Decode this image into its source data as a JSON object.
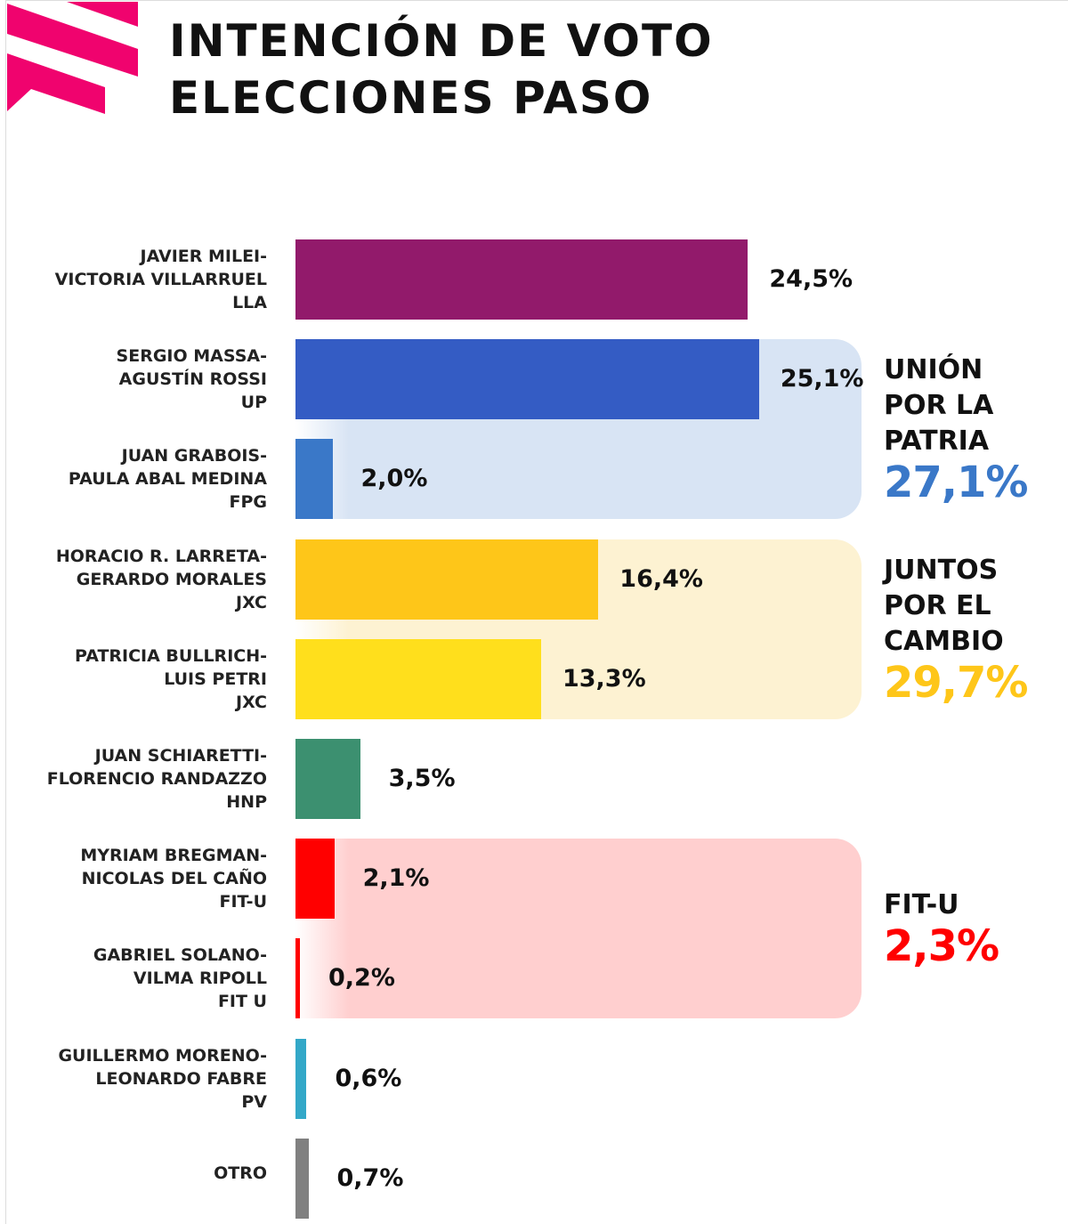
{
  "header": {
    "title_line1": "INTENCIÓN DE VOTO",
    "title_line2": "ELECCIONES PASO",
    "logo_color": "#f0036e"
  },
  "chart_data": {
    "type": "bar",
    "orientation": "horizontal",
    "title": "INTENCIÓN DE VOTO ELECCIONES PASO",
    "unit": "%",
    "categories": [
      [
        "JAVIER MILEI-",
        "VICTORIA VILLARRUEL",
        "LLA"
      ],
      [
        "SERGIO MASSA-",
        "AGUSTÍN ROSSI",
        "UP"
      ],
      [
        "JUAN GRABOIS-",
        "PAULA ABAL MEDINA",
        "FPG"
      ],
      [
        "HORACIO R. LARRETA-",
        "GERARDO MORALES",
        "JXC"
      ],
      [
        "PATRICIA BULLRICH-",
        "LUIS PETRI",
        "JXC"
      ],
      [
        "JUAN SCHIARETTI-",
        "FLORENCIO RANDAZZO",
        "HNP"
      ],
      [
        "MYRIAM BREGMAN-",
        "NICOLAS DEL CAÑO",
        "FIT-U"
      ],
      [
        "GABRIEL SOLANO-",
        "VILMA RIPOLL",
        "FIT U"
      ],
      [
        "GUILLERMO MORENO-",
        "LEONARDO FABRE",
        "PV"
      ],
      [
        "OTRO"
      ]
    ],
    "values": [
      24.5,
      25.1,
      2.0,
      16.4,
      13.3,
      3.5,
      2.1,
      0.2,
      0.6,
      0.7
    ],
    "value_labels": [
      "24,5%",
      "25,1%",
      "2,0%",
      "16,4%",
      "13,3%",
      "3,5%",
      "2,1%",
      "0,2%",
      "0,6%",
      "0,7%"
    ],
    "colors": [
      "#921a6b",
      "#345cc4",
      "#3a78c8",
      "#fec619",
      "#ffdf1c",
      "#3c9070",
      "#ff0000",
      "#ff0000",
      "#33a8c8",
      "#808080"
    ],
    "groups": [
      {
        "name_lines": [
          "UNIÓN",
          "POR LA",
          "PATRIA"
        ],
        "total": "27,1%",
        "rows": [
          1,
          2
        ],
        "bg": "#d8e4f4",
        "color": "#3a78c8"
      },
      {
        "name_lines": [
          "JUNTOS",
          "POR EL",
          "CAMBIO"
        ],
        "total": "29,7%",
        "rows": [
          3,
          4
        ],
        "bg": "#fdf2d2",
        "color": "#fec619"
      },
      {
        "name_lines": [
          "FIT-U"
        ],
        "total": "2,3%",
        "rows": [
          6,
          7
        ],
        "bg": "#ffcfcf",
        "color": "#ff0000"
      }
    ]
  }
}
